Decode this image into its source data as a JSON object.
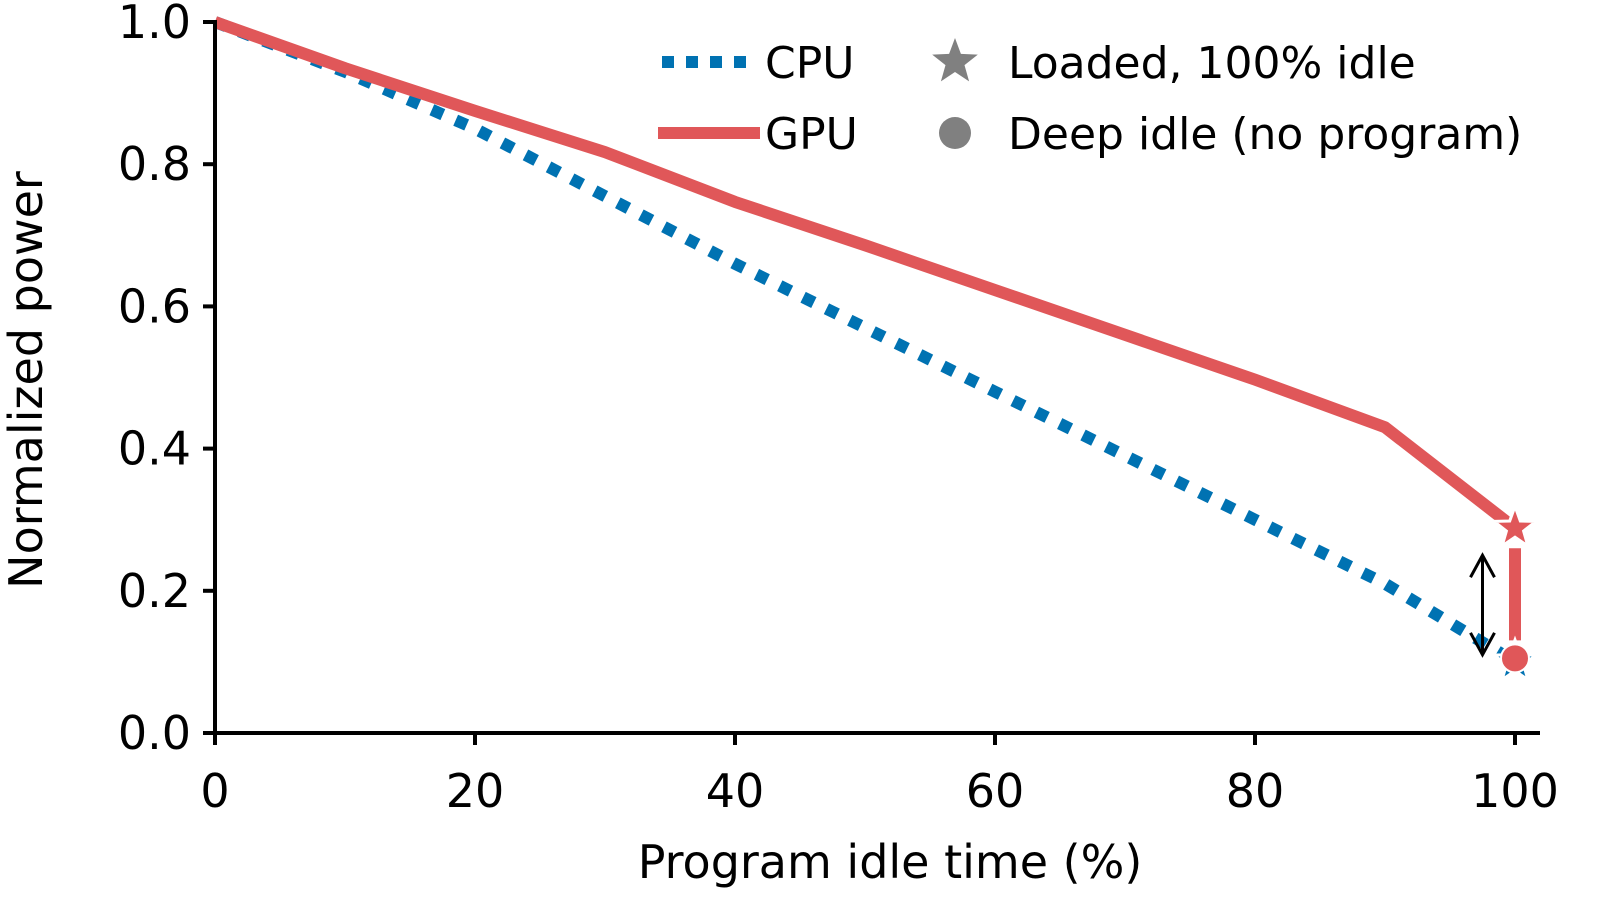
{
  "chart_data": {
    "type": "line",
    "title": "",
    "xlabel": "Program idle time (%)",
    "ylabel": "Normalized power",
    "xlim": [
      0,
      100
    ],
    "ylim": [
      0,
      1.0
    ],
    "xticks": [
      0,
      20,
      40,
      60,
      80,
      100
    ],
    "xtick_labels": [
      "0",
      "20",
      "40",
      "60",
      "80",
      "100"
    ],
    "yticks": [
      0.0,
      0.2,
      0.4,
      0.6,
      0.8,
      1.0
    ],
    "ytick_labels": [
      "0.0",
      "0.2",
      "0.4",
      "0.6",
      "0.8",
      "1.0"
    ],
    "grid": false,
    "legend_position": "top-right",
    "series": [
      {
        "name": "CPU",
        "style": "dotted",
        "color": "#0072b2",
        "x": [
          0,
          10,
          20,
          30,
          40,
          50,
          60,
          70,
          80,
          90,
          100
        ],
        "y": [
          1.0,
          0.93,
          0.85,
          0.755,
          0.66,
          0.57,
          0.48,
          0.39,
          0.3,
          0.21,
          0.1
        ]
      },
      {
        "name": "GPU",
        "style": "solid",
        "color": "#e05759",
        "x": [
          0,
          10,
          20,
          30,
          40,
          50,
          60,
          70,
          80,
          90,
          100
        ],
        "y": [
          1.0,
          0.935,
          0.875,
          0.817,
          0.747,
          0.686,
          0.623,
          0.56,
          0.497,
          0.43,
          0.288
        ]
      }
    ],
    "markers": [
      {
        "name": "CPU loaded, 100% idle",
        "shape": "star",
        "series": "CPU",
        "x": 100,
        "y": 0.1,
        "color": "#0072b2"
      },
      {
        "name": "GPU loaded, 100% idle",
        "shape": "star",
        "series": "GPU",
        "x": 100,
        "y": 0.288,
        "color": "#e05759"
      },
      {
        "name": "GPU deep idle",
        "shape": "circle",
        "series": "GPU",
        "x": 100,
        "y": 0.105,
        "color": "#e05759"
      }
    ],
    "annotations": [
      {
        "type": "vertical-segment",
        "series": "GPU",
        "x": 100,
        "y_from": 0.288,
        "y_to": 0.105,
        "color": "#e05759"
      },
      {
        "type": "double-arrow",
        "x": 97.5,
        "y_from": 0.11,
        "y_to": 0.25,
        "color": "#000000"
      }
    ],
    "legend": [
      {
        "label": "CPU",
        "kind": "line-dotted",
        "color": "#0072b2"
      },
      {
        "label": "GPU",
        "kind": "line-solid",
        "color": "#e05759"
      },
      {
        "label": "Loaded, 100% idle",
        "kind": "star",
        "color": "#808080"
      },
      {
        "label": "Deep idle (no program)",
        "kind": "circle",
        "color": "#808080"
      }
    ]
  }
}
